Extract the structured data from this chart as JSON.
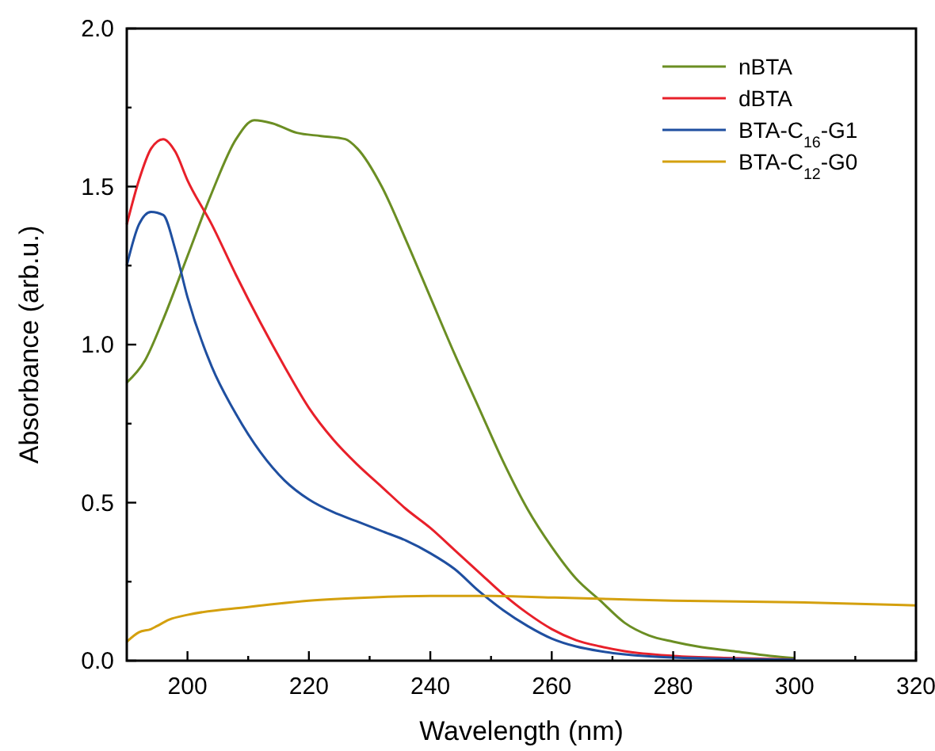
{
  "chart_data": {
    "type": "line",
    "xlabel": "Wavelength (nm)",
    "ylabel": "Absorbance (arb.u.)",
    "xlim": [
      190,
      320
    ],
    "xticks": [
      200,
      {
        "value": 210,
        "label": null
      },
      220,
      {
        "value": 230,
        "label": null
      },
      240,
      {
        "value": 250,
        "label": null
      },
      260,
      {
        "value": 270,
        "label": null
      },
      280,
      {
        "value": 290,
        "label": null
      },
      300,
      {
        "value": 310,
        "label": null
      },
      320
    ],
    "ylim": [
      0,
      2
    ],
    "yticks": [
      {
        "value": 0,
        "label": "0.0"
      },
      {
        "value": 0.25,
        "label": null
      },
      0.5,
      {
        "value": 0.75,
        "label": null
      },
      {
        "value": 1,
        "label": "1.0"
      },
      {
        "value": 1.25,
        "label": null
      },
      1.5,
      {
        "value": 1.75,
        "label": null
      },
      {
        "value": 2,
        "label": "2.0"
      }
    ],
    "legend": "top right",
    "grid": false,
    "marker": "none",
    "line_style": "solid",
    "series": [
      {
        "name": "nBTA",
        "color": "#6b8e23",
        "x": [
          190,
          193,
          196,
          200,
          204,
          208,
          211,
          214,
          218,
          222,
          226,
          228,
          232,
          236,
          240,
          244,
          248,
          252,
          256,
          260,
          264,
          268,
          272,
          276,
          280,
          284,
          290,
          296,
          300
        ],
        "values": [
          0.88,
          0.95,
          1.08,
          1.28,
          1.48,
          1.65,
          1.71,
          1.7,
          1.67,
          1.66,
          1.65,
          1.62,
          1.5,
          1.33,
          1.15,
          0.97,
          0.8,
          0.63,
          0.48,
          0.36,
          0.26,
          0.19,
          0.12,
          0.08,
          0.06,
          0.045,
          0.03,
          0.015,
          0.008
        ]
      },
      {
        "name": "dBTA",
        "color": "#e8202a",
        "x": [
          190,
          192,
          194,
          196,
          198,
          200,
          204,
          208,
          212,
          216,
          220,
          224,
          228,
          232,
          236,
          240,
          244,
          248,
          252,
          256,
          260,
          264,
          268,
          272,
          280,
          290,
          300
        ],
        "values": [
          1.38,
          1.52,
          1.62,
          1.65,
          1.61,
          1.52,
          1.38,
          1.22,
          1.07,
          0.93,
          0.8,
          0.7,
          0.62,
          0.55,
          0.48,
          0.42,
          0.35,
          0.28,
          0.21,
          0.15,
          0.1,
          0.065,
          0.045,
          0.03,
          0.015,
          0.008,
          0.004
        ]
      },
      {
        "name": "BTA-C$_{16}$-G1",
        "color": "#1f4fa0",
        "x": [
          190,
          192,
          194,
          196,
          198,
          200,
          204,
          208,
          212,
          216,
          220,
          224,
          228,
          232,
          236,
          240,
          244,
          248,
          252,
          256,
          260,
          264,
          268,
          272,
          280,
          300
        ],
        "values": [
          1.25,
          1.38,
          1.42,
          1.41,
          1.3,
          1.15,
          0.93,
          0.78,
          0.66,
          0.57,
          0.51,
          0.47,
          0.44,
          0.41,
          0.38,
          0.34,
          0.29,
          0.22,
          0.16,
          0.11,
          0.07,
          0.045,
          0.03,
          0.02,
          0.01,
          0.003
        ]
      },
      {
        "name": "BTA-C$_{12}$-G0",
        "color": "#d4a00e",
        "x": [
          190,
          192,
          194,
          195,
          197,
          200,
          210,
          220,
          230,
          240,
          250,
          260,
          270,
          280,
          300,
          320
        ],
        "values": [
          0.06,
          0.09,
          0.1,
          0.11,
          0.13,
          0.145,
          0.17,
          0.19,
          0.2,
          0.205,
          0.205,
          0.2,
          0.195,
          0.19,
          0.185,
          0.175
        ]
      }
    ]
  }
}
